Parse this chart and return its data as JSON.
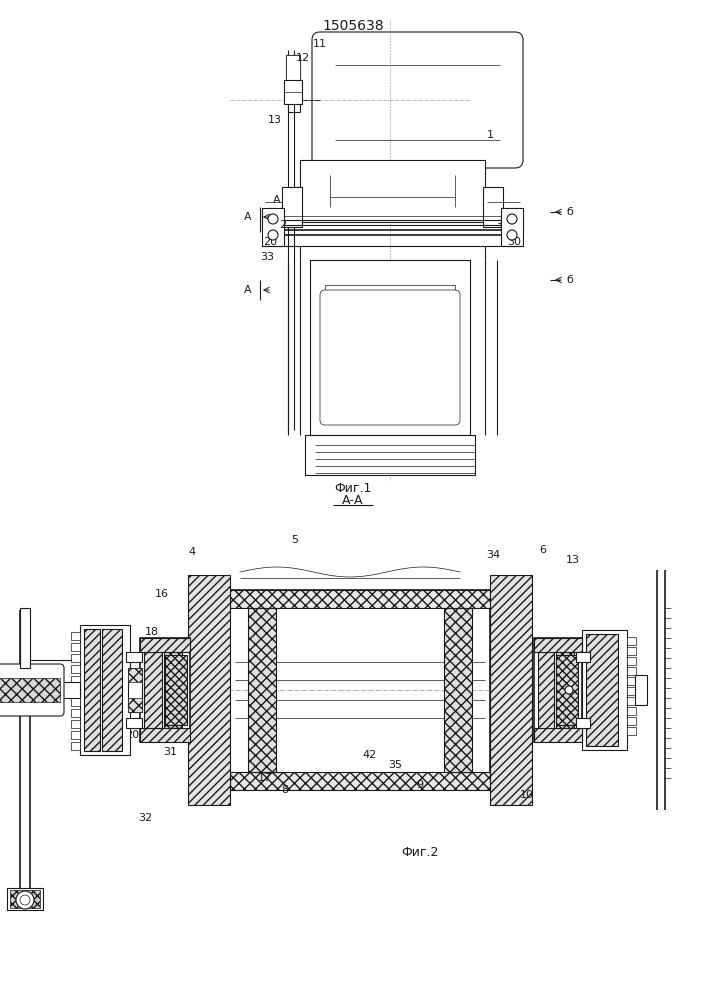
{
  "title": "1505638",
  "fig1_label": "Фиг.1",
  "fig2_label": "Фиг.2",
  "aa_label": "А-А",
  "bg_color": "#ffffff",
  "line_color": "#1a1a1a",
  "font_size_title": 10,
  "font_size_label": 9,
  "font_size_num": 8
}
